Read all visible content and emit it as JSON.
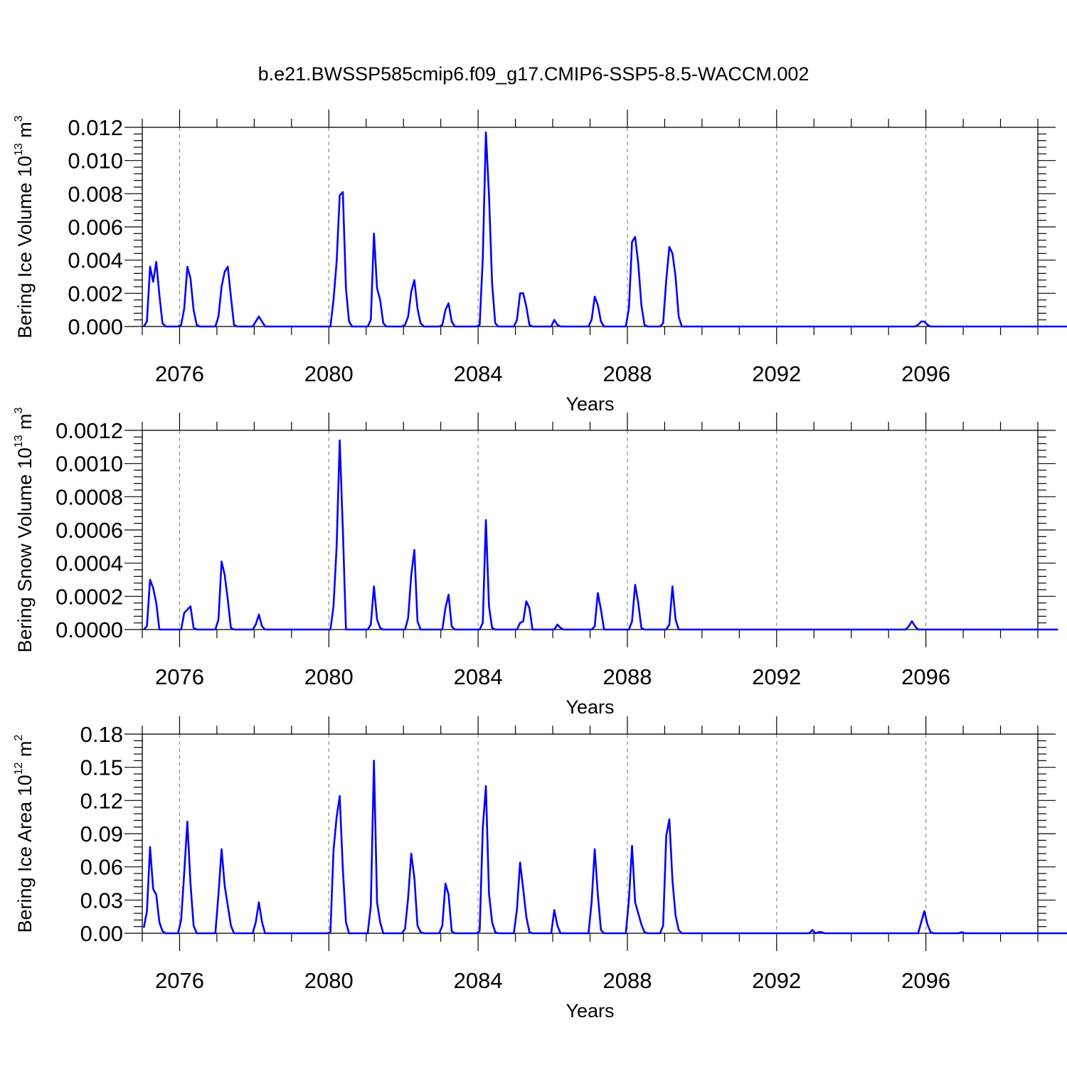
{
  "figure": {
    "title": "b.e21.BWSSP585cmip6.f09_g17.CMIP6-SSP5-8.5-WACCM.002",
    "series_color": "#0000ff"
  },
  "chart_data": [
    {
      "type": "line",
      "ylabel": "Bering Ice Volume 10",
      "ylabel_exp": "13",
      "ylabel_unit": " m",
      "ylabel_unit_exp": "3",
      "xlabel": "Years",
      "xlim": [
        2075.0,
        2099.0
      ],
      "ylim": [
        0.0,
        0.012
      ],
      "x_ticks": [
        "2076",
        "2080",
        "2084",
        "2088",
        "2092",
        "2096"
      ],
      "y_ticks": [
        "0.000",
        "0.002",
        "0.004",
        "0.006",
        "0.008",
        "0.010",
        "0.012"
      ],
      "grid": "vertical-dashed",
      "series": [
        {
          "x_start": 2075.042,
          "step": 0.0833333,
          "values": [
            0.0,
            0.0003,
            0.0036,
            0.0027,
            0.0039,
            0.0019,
            0.0002,
            0.0,
            0.0,
            0.0,
            0.0,
            0.0,
            0.0001,
            0.0011,
            0.0036,
            0.0029,
            0.001,
            0.0001,
            0.0,
            0.0,
            0.0,
            0.0,
            0.0,
            0.0,
            0.0006,
            0.0024,
            0.0033,
            0.0036,
            0.0018,
            0.0001,
            0.0,
            0.0,
            0.0,
            0.0,
            0.0,
            0.0,
            0.0003,
            0.0006,
            0.0003,
            0.0,
            0.0,
            0.0,
            0.0,
            0.0,
            0.0,
            0.0,
            0.0,
            0.0,
            0.0,
            0.0,
            0.0,
            0.0,
            0.0,
            0.0,
            0.0,
            0.0,
            0.0,
            0.0,
            0.0,
            0.0,
            0.0,
            0.0016,
            0.0039,
            0.0079,
            0.0081,
            0.0023,
            0.0003,
            0.0,
            0.0,
            0.0,
            0.0,
            0.0,
            0.0,
            0.0004,
            0.0056,
            0.0023,
            0.0016,
            0.0002,
            0.0,
            0.0,
            0.0,
            0.0,
            0.0,
            0.0,
            0.0001,
            0.0006,
            0.0021,
            0.0028,
            0.0011,
            0.0002,
            0.0,
            0.0,
            0.0,
            0.0,
            0.0,
            0.0,
            0.0001,
            0.001,
            0.0014,
            0.0003,
            0.0,
            0.0,
            0.0,
            0.0,
            0.0,
            0.0,
            0.0,
            0.0,
            0.0001,
            0.0041,
            0.0117,
            0.0079,
            0.0026,
            0.0002,
            0.0,
            0.0,
            0.0,
            0.0,
            0.0,
            0.0,
            0.0004,
            0.002,
            0.002,
            0.0012,
            0.0001,
            0.0,
            0.0,
            0.0,
            0.0,
            0.0,
            0.0,
            0.0,
            0.0004,
            0.0001,
            0.0,
            0.0,
            0.0,
            0.0,
            0.0,
            0.0,
            0.0,
            0.0,
            0.0,
            0.0,
            0.0004,
            0.0018,
            0.0013,
            0.0003,
            0.0,
            0.0,
            0.0,
            0.0,
            0.0,
            0.0,
            0.0,
            0.0,
            0.0011,
            0.0051,
            0.0054,
            0.0038,
            0.0013,
            0.0001,
            0.0,
            0.0,
            0.0,
            0.0,
            0.0,
            0.0002,
            0.0028,
            0.0048,
            0.0044,
            0.003,
            0.0006,
            0.0,
            0.0,
            0.0,
            0.0,
            0.0,
            0.0,
            0.0,
            0.0,
            0.0,
            0.0,
            0.0,
            0.0,
            0.0,
            0.0,
            0.0,
            0.0,
            0.0,
            0.0,
            0.0,
            0.0,
            0.0,
            0.0,
            0.0,
            0.0,
            0.0,
            0.0,
            0.0,
            0.0,
            0.0,
            0.0,
            0.0,
            0.0,
            0.0,
            0.0,
            0.0,
            0.0,
            0.0,
            0.0,
            0.0,
            0.0,
            0.0,
            0.0,
            0.0,
            0.0,
            0.0,
            0.0,
            0.0,
            0.0,
            0.0,
            0.0,
            0.0,
            0.0,
            0.0,
            0.0,
            0.0,
            0.0,
            0.0,
            0.0,
            0.0,
            0.0,
            0.0,
            0.0,
            0.0,
            0.0,
            0.0,
            0.0,
            0.0,
            0.0,
            0.0,
            0.0,
            0.0,
            0.0,
            0.0,
            0.0,
            0.0,
            0.0,
            0.0001,
            0.0003,
            0.0003,
            0.0001,
            0.0,
            0.0,
            0.0,
            0.0,
            0.0,
            0.0,
            0.0,
            0.0,
            0.0,
            0.0,
            0.0,
            0.0,
            0.0,
            0.0,
            0.0,
            0.0,
            0.0,
            0.0,
            0.0,
            0.0,
            0.0,
            0.0,
            0.0,
            0.0,
            0.0,
            0.0,
            0.0,
            0.0,
            0.0,
            0.0,
            0.0,
            0.0,
            0.0,
            0.0,
            0.0,
            0.0,
            0.0,
            0.0,
            0.0,
            0.0,
            0.0,
            0.0,
            0.0,
            0.0,
            0.0
          ]
        }
      ]
    },
    {
      "type": "line",
      "ylabel": "Bering Snow Volume 10",
      "ylabel_exp": "13",
      "ylabel_unit": " m",
      "ylabel_unit_exp": "3",
      "xlabel": "Years",
      "xlim": [
        2075.0,
        2099.0
      ],
      "ylim": [
        0.0,
        0.0012
      ],
      "x_ticks": [
        "2076",
        "2080",
        "2084",
        "2088",
        "2092",
        "2096"
      ],
      "y_ticks": [
        "0.0000",
        "0.0002",
        "0.0004",
        "0.0006",
        "0.0008",
        "0.0010",
        "0.0012"
      ],
      "grid": "vertical-dashed",
      "series": [
        {
          "x_start": 2075.042,
          "step": 0.0833333,
          "values": [
            0.0,
            2e-05,
            0.0003,
            0.00025,
            0.00016,
            0.0,
            0.0,
            0.0,
            0.0,
            0.0,
            0.0,
            0.0,
            0.0,
            0.0001,
            0.00012,
            0.00014,
            1e-05,
            0.0,
            0.0,
            0.0,
            0.0,
            0.0,
            0.0,
            0.0,
            6e-05,
            0.00041,
            0.00033,
            0.00018,
            1e-05,
            0.0,
            0.0,
            0.0,
            0.0,
            0.0,
            0.0,
            0.0,
            3e-05,
            9e-05,
            2e-05,
            0.0,
            0.0,
            0.0,
            0.0,
            0.0,
            0.0,
            0.0,
            0.0,
            0.0,
            0.0,
            0.0,
            0.0,
            0.0,
            0.0,
            0.0,
            0.0,
            0.0,
            0.0,
            0.0,
            0.0,
            0.0,
            0.0,
            0.00014,
            0.0005,
            0.00114,
            0.0006,
            0.0,
            0.0,
            0.0,
            0.0,
            0.0,
            0.0,
            0.0,
            0.0,
            3e-05,
            0.00026,
            6e-05,
            1e-05,
            0.0,
            0.0,
            0.0,
            0.0,
            0.0,
            0.0,
            0.0,
            0.0,
            7e-05,
            0.00033,
            0.00048,
            5e-05,
            0.0,
            0.0,
            0.0,
            0.0,
            0.0,
            0.0,
            0.0,
            0.0,
            0.00013,
            0.00021,
            2e-05,
            0.0,
            0.0,
            0.0,
            0.0,
            0.0,
            0.0,
            0.0,
            0.0,
            0.0,
            4e-05,
            0.00066,
            0.00014,
            1e-05,
            0.0,
            0.0,
            0.0,
            0.0,
            0.0,
            0.0,
            0.0,
            0.0,
            4e-05,
            5e-05,
            0.00017,
            0.00013,
            0.0,
            0.0,
            0.0,
            0.0,
            0.0,
            0.0,
            0.0,
            0.0,
            3e-05,
            1e-05,
            0.0,
            0.0,
            0.0,
            0.0,
            0.0,
            0.0,
            0.0,
            0.0,
            0.0,
            0.0,
            2e-05,
            0.00022,
            0.00012,
            0.0,
            0.0,
            0.0,
            0.0,
            0.0,
            0.0,
            0.0,
            0.0,
            0.0,
            5e-05,
            0.00027,
            0.00016,
            1e-05,
            0.0,
            0.0,
            0.0,
            0.0,
            0.0,
            0.0,
            0.0,
            0.0,
            3e-05,
            0.00026,
            6e-05,
            0.0,
            0.0,
            0.0,
            0.0,
            0.0,
            0.0,
            0.0,
            0.0,
            0.0,
            0.0,
            0.0,
            0.0,
            0.0,
            0.0,
            0.0,
            0.0,
            0.0,
            0.0,
            0.0,
            0.0,
            0.0,
            0.0,
            0.0,
            0.0,
            0.0,
            0.0,
            0.0,
            0.0,
            0.0,
            0.0,
            0.0,
            0.0,
            0.0,
            0.0,
            0.0,
            0.0,
            0.0,
            0.0,
            0.0,
            0.0,
            0.0,
            0.0,
            0.0,
            0.0,
            0.0,
            0.0,
            0.0,
            0.0,
            0.0,
            0.0,
            0.0,
            0.0,
            0.0,
            0.0,
            0.0,
            0.0,
            0.0,
            0.0,
            0.0,
            0.0,
            0.0,
            0.0,
            0.0,
            0.0,
            0.0,
            0.0,
            0.0,
            0.0,
            0.0,
            0.0,
            0.0,
            0.0,
            0.0,
            0.0,
            2e-05,
            5e-05,
            2e-05,
            0.0,
            0.0,
            0.0,
            0.0,
            0.0,
            0.0,
            0.0,
            0.0,
            0.0,
            0.0,
            0.0,
            0.0,
            0.0,
            0.0,
            0.0,
            0.0,
            0.0,
            0.0,
            0.0,
            0.0,
            0.0,
            0.0,
            0.0,
            0.0,
            0.0,
            0.0,
            0.0,
            0.0,
            0.0,
            0.0,
            0.0,
            0.0,
            0.0,
            0.0,
            0.0,
            0.0,
            0.0,
            0.0,
            0.0,
            0.0,
            0.0,
            0.0,
            0.0,
            0.0,
            0.0,
            0.0
          ]
        }
      ]
    },
    {
      "type": "line",
      "ylabel": "Bering Ice Area 10",
      "ylabel_exp": "12",
      "ylabel_unit": " m",
      "ylabel_unit_exp": "2",
      "xlabel": "Years",
      "xlim": [
        2075.0,
        2099.0
      ],
      "ylim": [
        0.0,
        0.18
      ],
      "x_ticks": [
        "2076",
        "2080",
        "2084",
        "2088",
        "2092",
        "2096"
      ],
      "y_ticks": [
        "0.00",
        "0.03",
        "0.06",
        "0.09",
        "0.12",
        "0.15",
        "0.18"
      ],
      "grid": "vertical-dashed",
      "series": [
        {
          "x_start": 2075.042,
          "step": 0.0833333,
          "values": [
            0.005,
            0.02,
            0.078,
            0.04,
            0.035,
            0.01,
            0.002,
            0.0,
            0.0,
            0.0,
            0.0,
            0.0,
            0.012,
            0.055,
            0.101,
            0.045,
            0.007,
            0.0,
            0.0,
            0.0,
            0.0,
            0.0,
            0.0,
            0.0,
            0.035,
            0.076,
            0.043,
            0.025,
            0.007,
            0.0,
            0.0,
            0.0,
            0.0,
            0.0,
            0.0,
            0.0,
            0.01,
            0.028,
            0.01,
            0.0,
            0.0,
            0.0,
            0.0,
            0.0,
            0.0,
            0.0,
            0.0,
            0.0,
            0.0,
            0.0,
            0.0,
            0.0,
            0.0,
            0.0,
            0.0,
            0.0,
            0.0,
            0.0,
            0.0,
            0.0,
            0.001,
            0.075,
            0.105,
            0.124,
            0.058,
            0.01,
            0.0,
            0.0,
            0.0,
            0.0,
            0.0,
            0.0,
            0.0,
            0.025,
            0.156,
            0.028,
            0.01,
            0.0,
            0.0,
            0.0,
            0.0,
            0.0,
            0.0,
            0.0,
            0.004,
            0.032,
            0.072,
            0.05,
            0.007,
            0.001,
            0.0,
            0.0,
            0.0,
            0.0,
            0.0,
            0.0,
            0.007,
            0.045,
            0.035,
            0.002,
            0.0,
            0.0,
            0.0,
            0.0,
            0.0,
            0.0,
            0.0,
            0.0,
            0.002,
            0.095,
            0.133,
            0.036,
            0.01,
            0.001,
            0.0,
            0.0,
            0.0,
            0.0,
            0.0,
            0.0,
            0.022,
            0.064,
            0.04,
            0.015,
            0.001,
            0.0,
            0.0,
            0.0,
            0.0,
            0.0,
            0.0,
            0.0,
            0.021,
            0.007,
            0.0,
            0.0,
            0.0,
            0.0,
            0.0,
            0.0,
            0.0,
            0.0,
            0.0,
            0.0,
            0.028,
            0.076,
            0.035,
            0.003,
            0.0,
            0.0,
            0.0,
            0.0,
            0.0,
            0.0,
            0.0,
            0.0,
            0.03,
            0.079,
            0.028,
            0.018,
            0.008,
            0.001,
            0.0,
            0.0,
            0.0,
            0.0,
            0.0,
            0.007,
            0.088,
            0.103,
            0.048,
            0.016,
            0.003,
            0.0,
            0.0,
            0.0,
            0.0,
            0.0,
            0.0,
            0.0,
            0.0,
            0.0,
            0.0,
            0.0,
            0.0,
            0.0,
            0.0,
            0.0,
            0.0,
            0.0,
            0.0,
            0.0,
            0.0,
            0.0,
            0.0,
            0.0,
            0.0,
            0.0,
            0.0,
            0.0,
            0.0,
            0.0,
            0.0,
            0.0,
            0.0,
            0.0,
            0.0,
            0.0,
            0.0,
            0.0,
            0.0,
            0.0,
            0.0,
            0.0,
            0.0,
            0.003,
            0.0,
            0.001,
            0.001,
            0.0,
            0.0,
            0.0,
            0.0,
            0.0,
            0.0,
            0.0,
            0.0,
            0.0,
            0.0,
            0.0,
            0.0,
            0.0,
            0.0,
            0.0,
            0.0,
            0.0,
            0.0,
            0.0,
            0.0,
            0.0,
            0.0,
            0.0,
            0.0,
            0.0,
            0.0,
            0.0,
            0.0,
            0.0,
            0.0,
            0.0,
            0.01,
            0.02,
            0.008,
            0.001,
            0.0,
            0.0,
            0.0,
            0.0,
            0.0,
            0.0,
            0.0,
            0.0,
            0.0,
            0.001,
            0.0,
            0.0,
            0.0,
            0.0,
            0.0,
            0.0,
            0.0,
            0.0,
            0.0,
            0.0,
            0.0,
            0.0,
            0.0,
            0.0,
            0.0,
            0.0,
            0.0,
            0.0,
            0.0,
            0.0,
            0.0,
            0.0,
            0.0,
            0.0,
            0.0,
            0.0,
            0.0,
            0.0,
            0.0,
            0.0,
            0.0,
            0.0,
            0.0,
            0.0,
            0.0,
            0.0
          ]
        }
      ]
    }
  ]
}
